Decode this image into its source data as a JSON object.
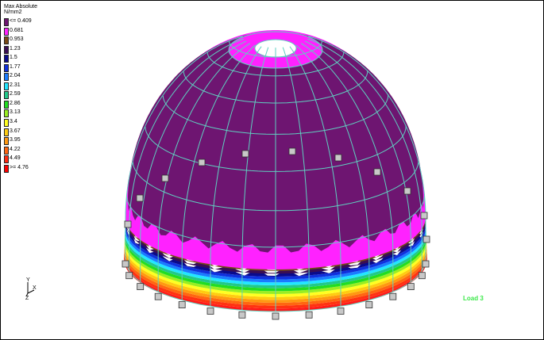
{
  "legend": {
    "title": "Max Absolute",
    "units": "N/mm2",
    "items": [
      {
        "label": "<= 0.409",
        "color": "#6e1571"
      },
      {
        "label": "0.681",
        "color": "#ff22ff"
      },
      {
        "label": "0.953",
        "color": "#7a4a14"
      },
      {
        "label": "1.23",
        "color": "#3a0e54"
      },
      {
        "label": "1.5",
        "color": "#0a0a8c"
      },
      {
        "label": "1.77",
        "color": "#1030dd"
      },
      {
        "label": "2.04",
        "color": "#1a7bff"
      },
      {
        "label": "2.31",
        "color": "#22e6ff"
      },
      {
        "label": "2.59",
        "color": "#22c98a"
      },
      {
        "label": "2.86",
        "color": "#22dd22"
      },
      {
        "label": "3.13",
        "color": "#99ee22"
      },
      {
        "label": "3.4",
        "color": "#ffff22"
      },
      {
        "label": "3.67",
        "color": "#ffcc11"
      },
      {
        "label": "3.95",
        "color": "#ff9911"
      },
      {
        "label": "4.22",
        "color": "#ff6611"
      },
      {
        "label": "4.49",
        "color": "#ff2a11"
      },
      {
        "label": ">= 4.76",
        "color": "#ff0000"
      }
    ]
  },
  "axes": {
    "y_label": "Y",
    "x_label": "X",
    "z_label": "Z"
  },
  "load_case": "Load 3",
  "colors": {
    "mesh": "#5fd0c0",
    "support": "#777777",
    "dome_body": "#6e1571",
    "crown": "#ff22ff"
  }
}
